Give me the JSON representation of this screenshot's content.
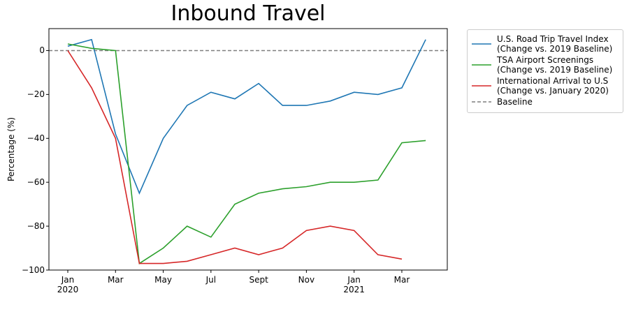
{
  "chart_data": {
    "type": "line",
    "title": "Inbound Travel",
    "y_label": "Percentage (%)",
    "x": [
      "2020-01",
      "2020-02",
      "2020-03",
      "2020-04",
      "2020-05",
      "2020-06",
      "2020-07",
      "2020-08",
      "2020-09",
      "2020-10",
      "2020-11",
      "2020-12",
      "2021-01",
      "2021-02",
      "2021-03",
      "2021-04"
    ],
    "xticks": [
      {
        "value": "2020-01",
        "label": "Jan\n2020"
      },
      {
        "value": "2020-03",
        "label": "Mar"
      },
      {
        "value": "2020-05",
        "label": "May"
      },
      {
        "value": "2020-07",
        "label": "Jul"
      },
      {
        "value": "2020-09",
        "label": "Sept"
      },
      {
        "value": "2020-11",
        "label": "Nov"
      },
      {
        "value": "2021-01",
        "label": "Jan\n2021"
      },
      {
        "value": "2021-03",
        "label": "Mar"
      }
    ],
    "ylim": [
      -100,
      10
    ],
    "yticks": [
      {
        "value": -100,
        "label": "−100"
      },
      {
        "value": -80,
        "label": "−80"
      },
      {
        "value": -60,
        "label": "−60"
      },
      {
        "value": -40,
        "label": "−40"
      },
      {
        "value": -20,
        "label": "−20"
      },
      0
    ],
    "series": [
      {
        "name": "U.S. Road Trip Travel Index\n(Change vs. 2019 Baseline)",
        "color": "#1f77b4",
        "values": [
          2,
          5,
          -38,
          -65,
          -40,
          -25,
          -19,
          -22,
          -15,
          -25,
          -25,
          -23,
          -19,
          -20,
          -17,
          5
        ]
      },
      {
        "name": "TSA Airport Screenings\n(Change vs. 2019 Baseline)",
        "color": "#2ca02c",
        "values": [
          3,
          1,
          0,
          -97,
          -90,
          -80,
          -85,
          -70,
          -65,
          -63,
          -62,
          -60,
          -60,
          -59,
          -42,
          -41
        ]
      },
      {
        "name": "International Arrival to U.S\n(Change vs. January 2020)",
        "color": "#d62728",
        "values": [
          0,
          -17,
          -40,
          -97,
          -97,
          -96,
          -93,
          -90,
          -93,
          -90,
          -82,
          -80,
          -82,
          -93,
          -95,
          null
        ]
      }
    ],
    "baseline": {
      "name": "Baseline",
      "value": 0,
      "color": "#7f7f7f"
    }
  }
}
